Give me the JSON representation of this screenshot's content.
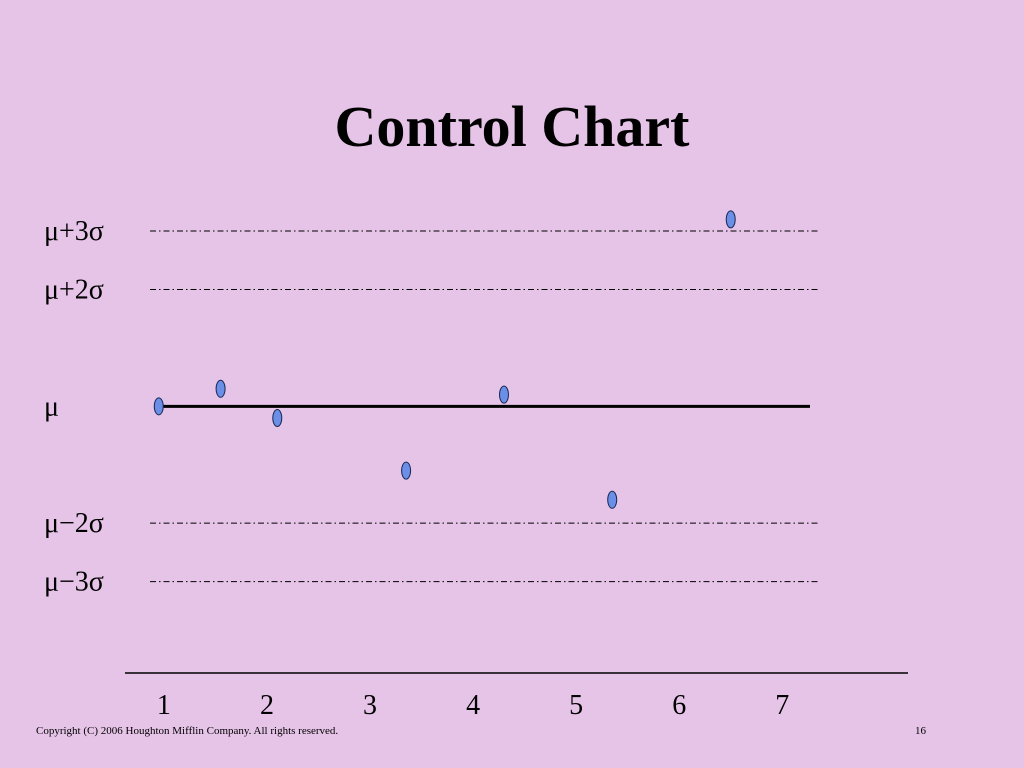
{
  "slide": {
    "title": "Control Chart",
    "copyright": "Copyright (C) 2006 Houghton Mifflin Company.  All rights reserved.",
    "page_number": "16"
  },
  "colors": {
    "background": "#e6c4e8",
    "point_fill": "#6b8fe6",
    "line": "#000000"
  },
  "chart_data": {
    "type": "scatter",
    "title": "Control Chart",
    "xlabel": "",
    "ylabel": "",
    "x_ticks": [
      "1",
      "2",
      "3",
      "4",
      "5",
      "6",
      "7"
    ],
    "xlim": [
      0.7,
      7.9
    ],
    "ylim": [
      -4.0,
      3.6
    ],
    "reference_lines": [
      {
        "label": "μ+3σ",
        "value": 3,
        "style": "dash-dot"
      },
      {
        "label": "μ+2σ",
        "value": 2,
        "style": "dash-dot"
      },
      {
        "label": "μ",
        "value": 0,
        "style": "solid"
      },
      {
        "label": "μ−2σ",
        "value": -2,
        "style": "dash-dot"
      },
      {
        "label": "μ−3σ",
        "value": -3,
        "style": "dash-dot"
      }
    ],
    "points": [
      {
        "x": 0.95,
        "y": 0.0
      },
      {
        "x": 1.55,
        "y": 0.3
      },
      {
        "x": 2.1,
        "y": -0.2
      },
      {
        "x": 3.35,
        "y": -1.1
      },
      {
        "x": 4.3,
        "y": 0.2
      },
      {
        "x": 5.35,
        "y": -1.6
      },
      {
        "x": 6.5,
        "y": 3.2
      }
    ]
  }
}
